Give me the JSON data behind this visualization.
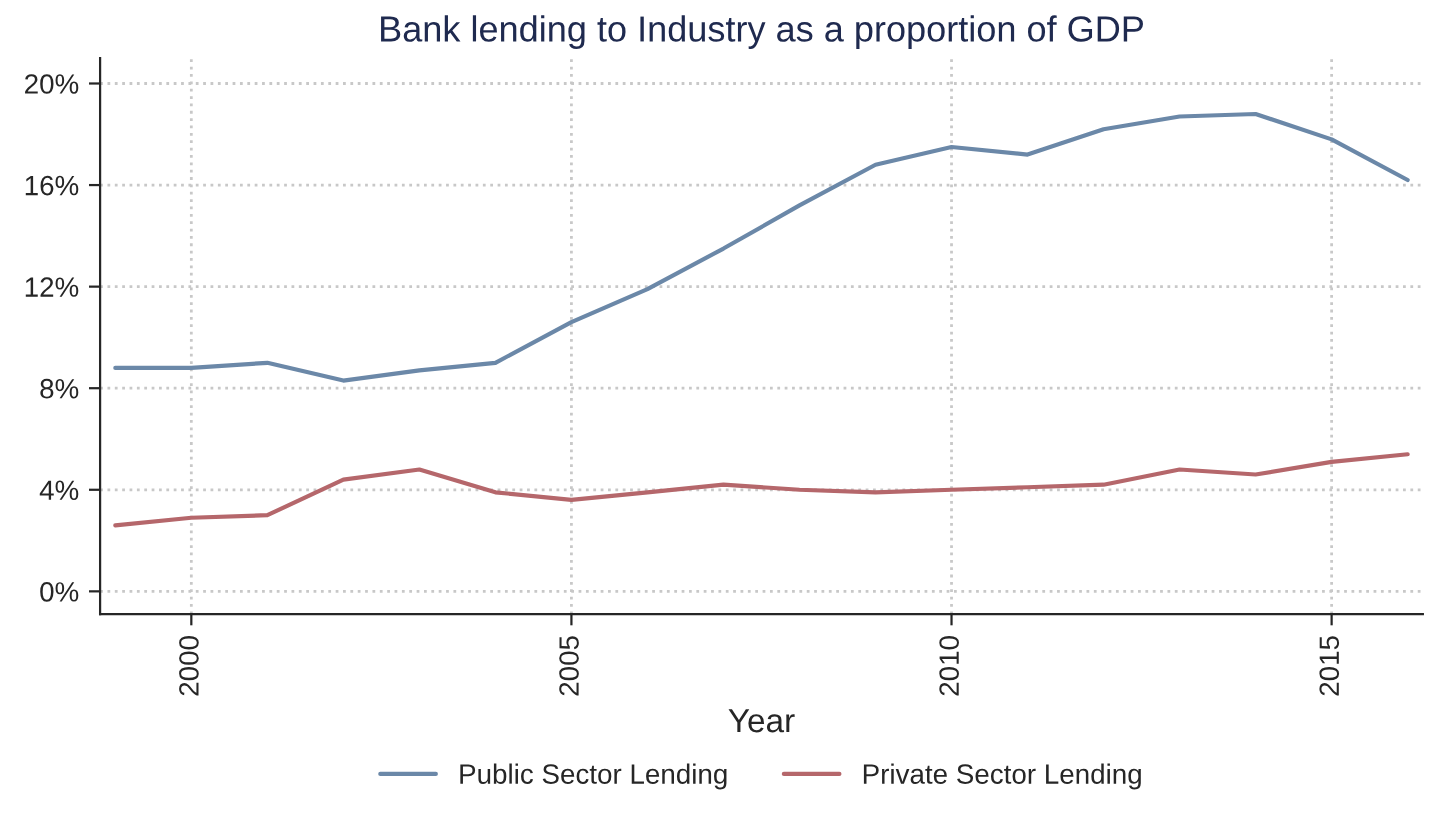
{
  "chart_data": {
    "type": "line",
    "title": "Bank lending to Industry as a proportion of GDP",
    "xlabel": "Year",
    "x": [
      1999,
      2000,
      2001,
      2002,
      2003,
      2004,
      2005,
      2006,
      2007,
      2008,
      2009,
      2010,
      2011,
      2012,
      2013,
      2014,
      2015,
      2016
    ],
    "series": [
      {
        "name": "Public Sector Lending",
        "color": "#6b88a8",
        "values": [
          8.8,
          8.8,
          9.0,
          8.3,
          8.7,
          9.0,
          10.6,
          11.9,
          13.5,
          15.2,
          16.8,
          17.5,
          17.2,
          18.2,
          18.7,
          18.8,
          17.8,
          16.2
        ]
      },
      {
        "name": "Private Sector Lending",
        "color": "#b5676b",
        "values": [
          2.6,
          2.9,
          3.0,
          4.4,
          4.8,
          3.9,
          3.6,
          3.9,
          4.2,
          4.0,
          3.9,
          4.0,
          4.1,
          4.2,
          4.8,
          4.6,
          5.1,
          5.4
        ]
      }
    ],
    "xlim": [
      1998.8,
      2016.2
    ],
    "xticks": [
      2000,
      2005,
      2010,
      2015
    ],
    "ylim": [
      -0.9,
      21
    ],
    "yticks": [
      {
        "value": 0,
        "label": "0%"
      },
      {
        "value": 4,
        "label": "4%"
      },
      {
        "value": 8,
        "label": "8%"
      },
      {
        "value": 12,
        "label": "12%"
      },
      {
        "value": 16,
        "label": "16%"
      },
      {
        "value": 20,
        "label": "20%"
      }
    ],
    "grid": true,
    "legend": "bottom",
    "marker": "none",
    "line_style": "solid"
  }
}
